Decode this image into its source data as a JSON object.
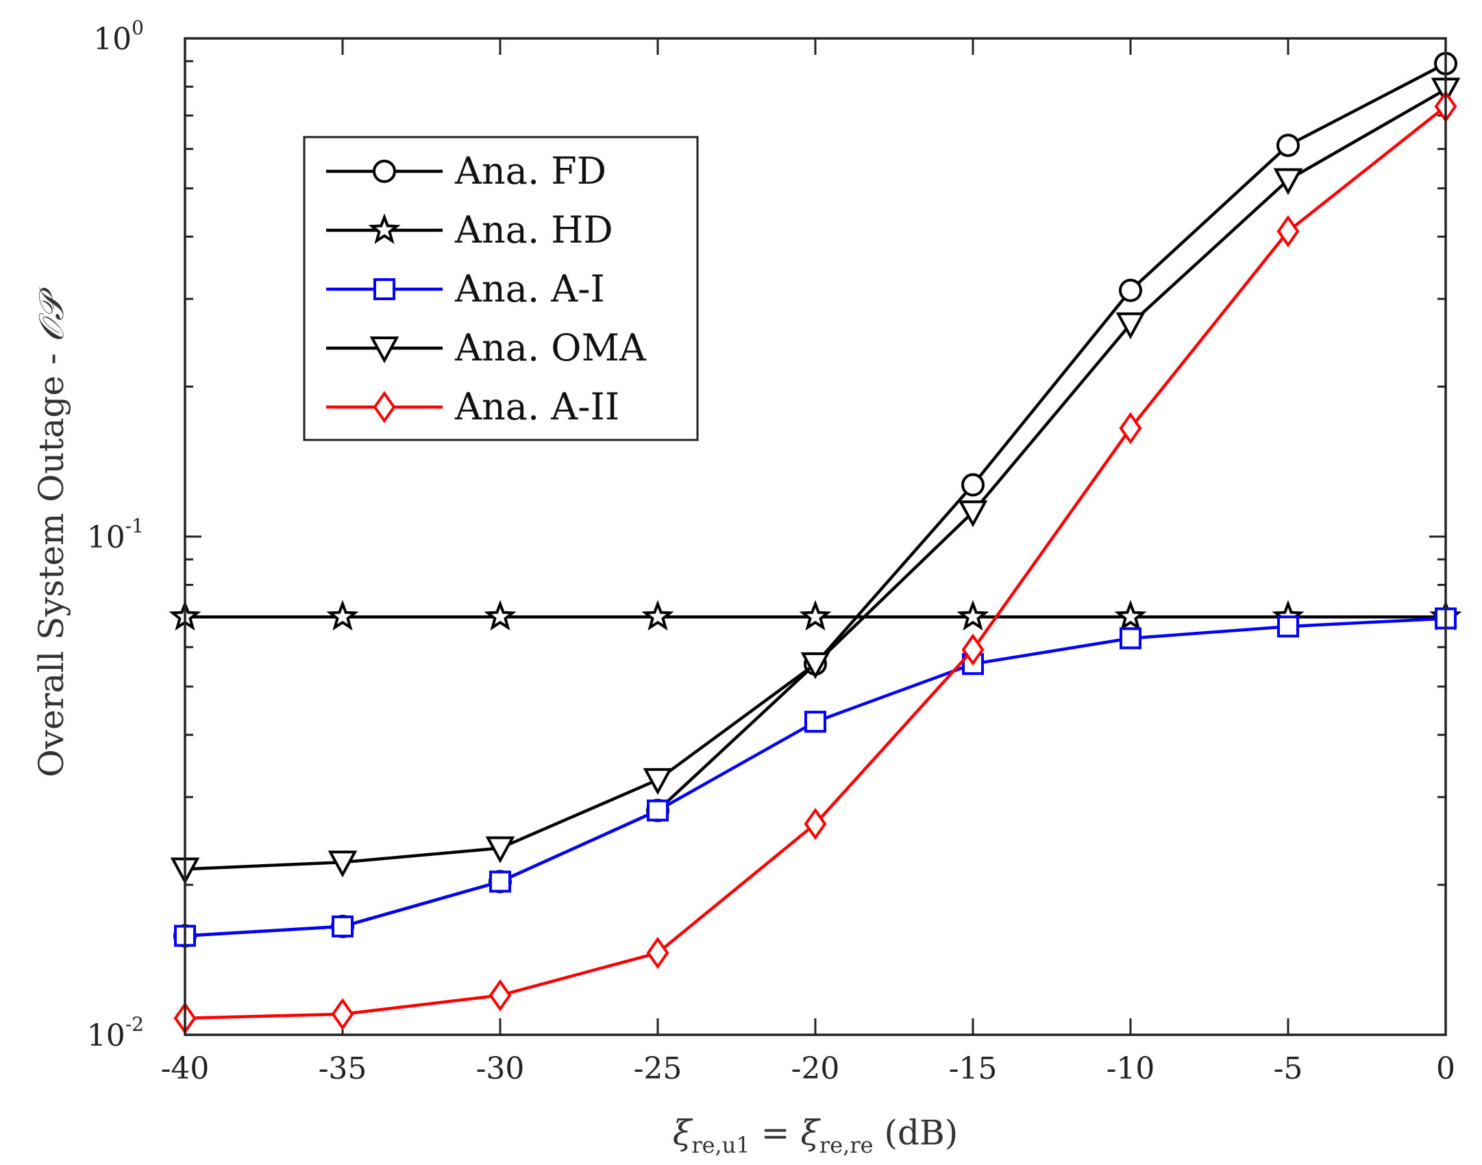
{
  "chart_data": {
    "type": "line",
    "title": "",
    "xlabel": {
      "prefix": "ξ",
      "sub1": "re,u1",
      "mid": " = ξ",
      "sub2": "re,re",
      "suffix": " (dB)"
    },
    "ylabel": {
      "text": "Overall System Outage - ",
      "symbol": "𝒪𝒫"
    },
    "yscale": "log",
    "xlim": [
      -40,
      0
    ],
    "ylim": [
      0.01,
      1
    ],
    "grid": false,
    "legend_position": "top-left",
    "x": [
      -40,
      -35,
      -30,
      -25,
      -20,
      -15,
      -10,
      -5,
      0
    ],
    "xticks": [
      {
        "value": -40,
        "label": "-40"
      },
      {
        "value": -35,
        "label": "-35"
      },
      {
        "value": -30,
        "label": "-30"
      },
      {
        "value": -25,
        "label": "-25"
      },
      {
        "value": -20,
        "label": "-20"
      },
      {
        "value": -15,
        "label": "-15"
      },
      {
        "value": -10,
        "label": "-10"
      },
      {
        "value": -5,
        "label": "-5"
      },
      {
        "value": 0,
        "label": "0"
      }
    ],
    "yticks": [
      {
        "value": 0.01,
        "base": "10",
        "exp": "-2"
      },
      {
        "value": 0.1,
        "base": "10",
        "exp": "-1"
      },
      {
        "value": 1,
        "base": "10",
        "exp": "0"
      }
    ],
    "series": [
      {
        "name": "Ana. FD",
        "color": "#000000",
        "marker": "circle",
        "values": [
          0.0158,
          0.0165,
          0.0203,
          0.0282,
          0.0555,
          0.127,
          0.312,
          0.61,
          0.89
        ]
      },
      {
        "name": "Ana. HD",
        "color": "#000000",
        "marker": "star",
        "values": [
          0.069,
          0.069,
          0.069,
          0.069,
          0.069,
          0.069,
          0.069,
          0.069,
          0.069
        ]
      },
      {
        "name": "Ana. A-I",
        "color": "#0000ff",
        "marker": "square",
        "values": [
          0.0158,
          0.0165,
          0.0203,
          0.0282,
          0.0425,
          0.0555,
          0.0625,
          0.066,
          0.0685
        ]
      },
      {
        "name": "Ana. OMA",
        "color": "#000000",
        "marker": "triangle-down",
        "values": [
          0.0215,
          0.0222,
          0.0237,
          0.0325,
          0.0555,
          0.112,
          0.267,
          0.52,
          0.79
        ]
      },
      {
        "name": "Ana. A-II",
        "color": "#ff0000",
        "marker": "diamond",
        "values": [
          0.0108,
          0.011,
          0.012,
          0.0146,
          0.0265,
          0.0593,
          0.165,
          0.41,
          0.73
        ]
      }
    ]
  }
}
